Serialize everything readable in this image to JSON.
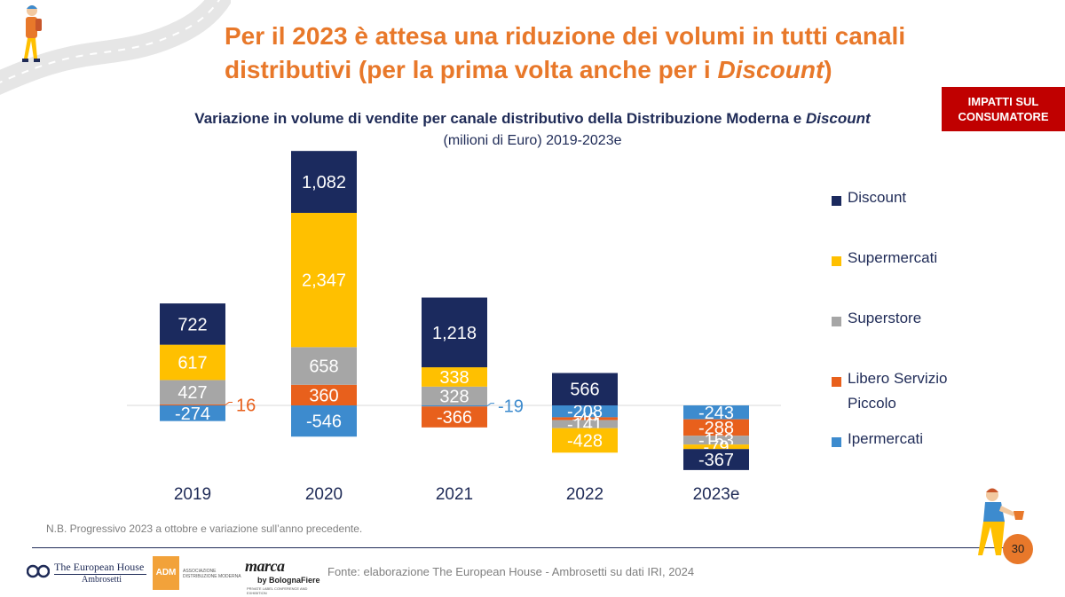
{
  "slide": {
    "title_line1": "Per il 2023 è attesa una riduzione dei volumi in tutti canali",
    "title_line2_before": "distributivi (per la prima volta anche per i ",
    "title_line2_italic": "Discount",
    "title_line2_after": ")",
    "badge_line1": "IMPATTI SUL",
    "badge_line2": "CONSUMATORE",
    "note": "N.B. Progressivo 2023 a ottobre e variazione sull’anno precedente.",
    "source": "Fonte: elaborazione The European House - Ambrosetti su dati IRI, 2024",
    "page_number": "30",
    "logos": {
      "teh_line1": "The European House",
      "teh_line2": "Ambrosetti",
      "adm_short": "ADM",
      "adm_long": "ASSOCIAZIONE DISTRIBUZIONE MODERNA",
      "marca_word": "marca",
      "marca_by": "by BolognaFiere",
      "marca_tag": "PRIVATE LABEL CONFERENCE AND EXHIBITION"
    }
  },
  "colors": {
    "title": "#E8782A",
    "badge": "#C00000",
    "Discount": "#1B2A5E",
    "Supermercati": "#FFC000",
    "Superstore": "#A6A6A6",
    "Libero Servizio Piccolo": "#E8601C",
    "Ipermercati": "#3D8BCE"
  },
  "chart_data": {
    "type": "bar",
    "stacked": true,
    "title_main": "Variazione in volume di vendite per canale distributivo della Distribuzione Moderna e ",
    "title_italic": "Discount",
    "subtitle": "(milioni di Euro) 2019-2023e",
    "categories": [
      "2019",
      "2020",
      "2021",
      "2022",
      "2023e"
    ],
    "series": [
      {
        "name": "Discount",
        "values": [
          722,
          1082,
          1218,
          566,
          -367
        ]
      },
      {
        "name": "Supermercati",
        "values": [
          617,
          2347,
          338,
          -428,
          -79
        ]
      },
      {
        "name": "Superstore",
        "values": [
          427,
          658,
          328,
          -141,
          -153
        ]
      },
      {
        "name": "Libero Servizio Piccolo",
        "values": [
          16,
          360,
          -366,
          -49,
          -288
        ]
      },
      {
        "name": "Ipermercati",
        "values": [
          -274,
          -546,
          -19,
          -208,
          -243
        ]
      }
    ],
    "legend_position": "right",
    "grid": false
  }
}
